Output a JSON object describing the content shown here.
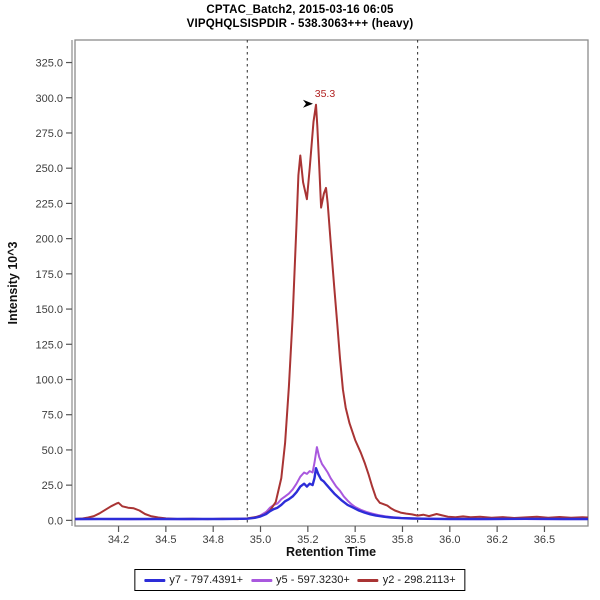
{
  "title": {
    "line1": "CPTAC_Batch2, 2015-03-16 06:05",
    "line2": "VIPQHQLSISPDIR - 538.3063+++ (heavy)"
  },
  "chart_data": {
    "type": "line",
    "title": "CPTAC_Batch2, 2015-03-16 06:05",
    "subtitle": "VIPQHQLSISPDIR - 538.3063+++ (heavy)",
    "xlabel": "Retention Time",
    "ylabel": "Intensity 10^3",
    "xlim": [
      34.02,
      36.73
    ],
    "ylim": [
      -4,
      341
    ],
    "grid": false,
    "legend_position": "bottom",
    "frame_color": "#8c8c8c",
    "tick_color": "#555555",
    "tick_label_color": "#3d3d3d",
    "x_ticks": [
      {
        "v": 34.25,
        "label": "34.2"
      },
      {
        "v": 34.5,
        "label": "34.5"
      },
      {
        "v": 34.75,
        "label": "34.8"
      },
      {
        "v": 35.0,
        "label": "35.0"
      },
      {
        "v": 35.25,
        "label": "35.2"
      },
      {
        "v": 35.5,
        "label": "35.5"
      },
      {
        "v": 35.75,
        "label": "35.8"
      },
      {
        "v": 36.0,
        "label": "36.0"
      },
      {
        "v": 36.25,
        "label": "36.2"
      },
      {
        "v": 36.5,
        "label": "36.5"
      }
    ],
    "y_ticks": [
      {
        "v": 0,
        "label": "0.0"
      },
      {
        "v": 25,
        "label": "25.0"
      },
      {
        "v": 50,
        "label": "50.0"
      },
      {
        "v": 75,
        "label": "75.0"
      },
      {
        "v": 100,
        "label": "100.0"
      },
      {
        "v": 125,
        "label": "125.0"
      },
      {
        "v": 150,
        "label": "150.0"
      },
      {
        "v": 175,
        "label": "175.0"
      },
      {
        "v": 200,
        "label": "200.0"
      },
      {
        "v": 225,
        "label": "225.0"
      },
      {
        "v": 250,
        "label": "250.0"
      },
      {
        "v": 275,
        "label": "275.0"
      },
      {
        "v": 300,
        "label": "300.0"
      },
      {
        "v": 325,
        "label": "325.0"
      }
    ],
    "peak_boundaries": {
      "x": [
        34.93,
        35.83
      ],
      "style": "dashed",
      "color": "#2a2a2a"
    },
    "annotation": {
      "text": "35.3",
      "x": 35.293,
      "y": 295,
      "color": "#b22222",
      "arrow": "right"
    },
    "series": [
      {
        "name": "y5 - 597.3230+",
        "color": "#a958de",
        "width": 2,
        "points": [
          [
            34.02,
            0.8
          ],
          [
            34.15,
            1
          ],
          [
            34.3,
            0.8
          ],
          [
            34.45,
            1
          ],
          [
            34.6,
            0.8
          ],
          [
            34.75,
            1
          ],
          [
            34.88,
            1.1
          ],
          [
            34.93,
            1.2
          ],
          [
            34.97,
            2
          ],
          [
            35.0,
            3.5
          ],
          [
            35.03,
            6
          ],
          [
            35.05,
            9
          ],
          [
            35.07,
            11
          ],
          [
            35.09,
            12
          ],
          [
            35.11,
            15
          ],
          [
            35.13,
            17
          ],
          [
            35.15,
            19
          ],
          [
            35.17,
            22
          ],
          [
            35.19,
            26
          ],
          [
            35.21,
            31
          ],
          [
            35.23,
            34
          ],
          [
            35.245,
            33
          ],
          [
            35.26,
            35
          ],
          [
            35.275,
            34
          ],
          [
            35.285,
            41
          ],
          [
            35.298,
            52
          ],
          [
            35.31,
            45
          ],
          [
            35.325,
            40
          ],
          [
            35.34,
            37
          ],
          [
            35.355,
            34
          ],
          [
            35.37,
            30
          ],
          [
            35.385,
            27
          ],
          [
            35.4,
            24
          ],
          [
            35.42,
            21
          ],
          [
            35.44,
            17
          ],
          [
            35.46,
            14
          ],
          [
            35.48,
            11.5
          ],
          [
            35.5,
            9.5
          ],
          [
            35.53,
            7.5
          ],
          [
            35.56,
            6
          ],
          [
            35.59,
            4.8
          ],
          [
            35.62,
            3.8
          ],
          [
            35.66,
            2.8
          ],
          [
            35.7,
            2.2
          ],
          [
            35.75,
            1.7
          ],
          [
            35.82,
            1.3
          ],
          [
            35.9,
            1.1
          ],
          [
            36.0,
            1
          ],
          [
            36.15,
            0.9
          ],
          [
            36.3,
            1
          ],
          [
            36.5,
            0.9
          ],
          [
            36.73,
            0.9
          ]
        ]
      },
      {
        "name": "y2 - 298.2113+",
        "color": "#a93434",
        "width": 2,
        "points": [
          [
            34.02,
            1
          ],
          [
            34.06,
            1.3
          ],
          [
            34.09,
            2
          ],
          [
            34.12,
            3
          ],
          [
            34.15,
            5
          ],
          [
            34.18,
            7.5
          ],
          [
            34.21,
            10
          ],
          [
            34.24,
            12
          ],
          [
            34.25,
            12.5
          ],
          [
            34.27,
            10
          ],
          [
            34.3,
            9
          ],
          [
            34.33,
            8.6
          ],
          [
            34.36,
            7
          ],
          [
            34.39,
            4.5
          ],
          [
            34.42,
            3
          ],
          [
            34.46,
            2
          ],
          [
            34.5,
            1.4
          ],
          [
            34.56,
            1
          ],
          [
            34.64,
            1.2
          ],
          [
            34.72,
            0.9
          ],
          [
            34.8,
            1.1
          ],
          [
            34.88,
            0.9
          ],
          [
            34.93,
            1.4
          ],
          [
            34.98,
            2.5
          ],
          [
            35.02,
            4
          ],
          [
            35.05,
            7
          ],
          [
            35.08,
            13
          ],
          [
            35.11,
            30
          ],
          [
            35.13,
            55
          ],
          [
            35.15,
            95
          ],
          [
            35.17,
            145
          ],
          [
            35.19,
            210
          ],
          [
            35.2,
            245
          ],
          [
            35.21,
            259
          ],
          [
            35.225,
            240
          ],
          [
            35.245,
            228
          ],
          [
            35.26,
            250
          ],
          [
            35.28,
            283
          ],
          [
            35.293,
            295
          ],
          [
            35.3,
            280
          ],
          [
            35.31,
            252
          ],
          [
            35.32,
            222
          ],
          [
            35.335,
            232
          ],
          [
            35.346,
            236
          ],
          [
            35.355,
            225
          ],
          [
            35.37,
            198
          ],
          [
            35.39,
            165
          ],
          [
            35.405,
            140
          ],
          [
            35.42,
            115
          ],
          [
            35.435,
            93
          ],
          [
            35.45,
            80
          ],
          [
            35.47,
            69
          ],
          [
            35.5,
            57
          ],
          [
            35.53,
            48
          ],
          [
            35.55,
            41
          ],
          [
            35.57,
            33
          ],
          [
            35.59,
            24
          ],
          [
            35.61,
            16
          ],
          [
            35.63,
            12.5
          ],
          [
            35.65,
            11.5
          ],
          [
            35.67,
            10.5
          ],
          [
            35.69,
            8.5
          ],
          [
            35.71,
            7
          ],
          [
            35.74,
            5.5
          ],
          [
            35.77,
            4.8
          ],
          [
            35.8,
            4.2
          ],
          [
            35.83,
            3.4
          ],
          [
            35.86,
            4
          ],
          [
            35.89,
            3
          ],
          [
            35.93,
            4.5
          ],
          [
            35.96,
            3.5
          ],
          [
            35.99,
            2.6
          ],
          [
            36.03,
            2.2
          ],
          [
            36.07,
            2.8
          ],
          [
            36.11,
            2.2
          ],
          [
            36.16,
            2.5
          ],
          [
            36.22,
            1.9
          ],
          [
            36.28,
            2.3
          ],
          [
            36.34,
            1.7
          ],
          [
            36.4,
            2.1
          ],
          [
            36.46,
            2.5
          ],
          [
            36.52,
            1.9
          ],
          [
            36.58,
            2.4
          ],
          [
            36.64,
            1.9
          ],
          [
            36.7,
            2.2
          ],
          [
            36.73,
            2
          ]
        ]
      },
      {
        "name": "y7 - 797.4391+",
        "color": "#2d2dd8",
        "width": 2.4,
        "points": [
          [
            34.02,
            1
          ],
          [
            34.2,
            1
          ],
          [
            34.4,
            1
          ],
          [
            34.6,
            1
          ],
          [
            34.8,
            1
          ],
          [
            34.93,
            1.2
          ],
          [
            34.97,
            1.8
          ],
          [
            35.0,
            2.8
          ],
          [
            35.03,
            4.5
          ],
          [
            35.05,
            6.5
          ],
          [
            35.07,
            8
          ],
          [
            35.09,
            9
          ],
          [
            35.11,
            11
          ],
          [
            35.13,
            13.5
          ],
          [
            35.15,
            15
          ],
          [
            35.17,
            17
          ],
          [
            35.19,
            20
          ],
          [
            35.21,
            24
          ],
          [
            35.23,
            26
          ],
          [
            35.245,
            24
          ],
          [
            35.26,
            26
          ],
          [
            35.275,
            25
          ],
          [
            35.285,
            30
          ],
          [
            35.293,
            37
          ],
          [
            35.305,
            33
          ],
          [
            35.32,
            29
          ],
          [
            35.335,
            27.5
          ],
          [
            35.35,
            25
          ],
          [
            35.37,
            22
          ],
          [
            35.39,
            19
          ],
          [
            35.41,
            16.5
          ],
          [
            35.43,
            14
          ],
          [
            35.46,
            11
          ],
          [
            35.49,
            9
          ],
          [
            35.52,
            7
          ],
          [
            35.55,
            5.5
          ],
          [
            35.58,
            4.3
          ],
          [
            35.61,
            3.4
          ],
          [
            35.65,
            2.6
          ],
          [
            35.69,
            2
          ],
          [
            35.74,
            1.6
          ],
          [
            35.8,
            1.3
          ],
          [
            35.88,
            1.1
          ],
          [
            36.0,
            1
          ],
          [
            36.2,
            1
          ],
          [
            36.4,
            1.1
          ],
          [
            36.6,
            1
          ],
          [
            36.73,
            1
          ]
        ]
      }
    ],
    "legend": [
      {
        "label": "y7 - 797.4391+",
        "color": "#2d2dd8"
      },
      {
        "label": "y5 - 597.3230+",
        "color": "#a958de"
      },
      {
        "label": "y2 - 298.2113+",
        "color": "#a93434"
      }
    ]
  }
}
